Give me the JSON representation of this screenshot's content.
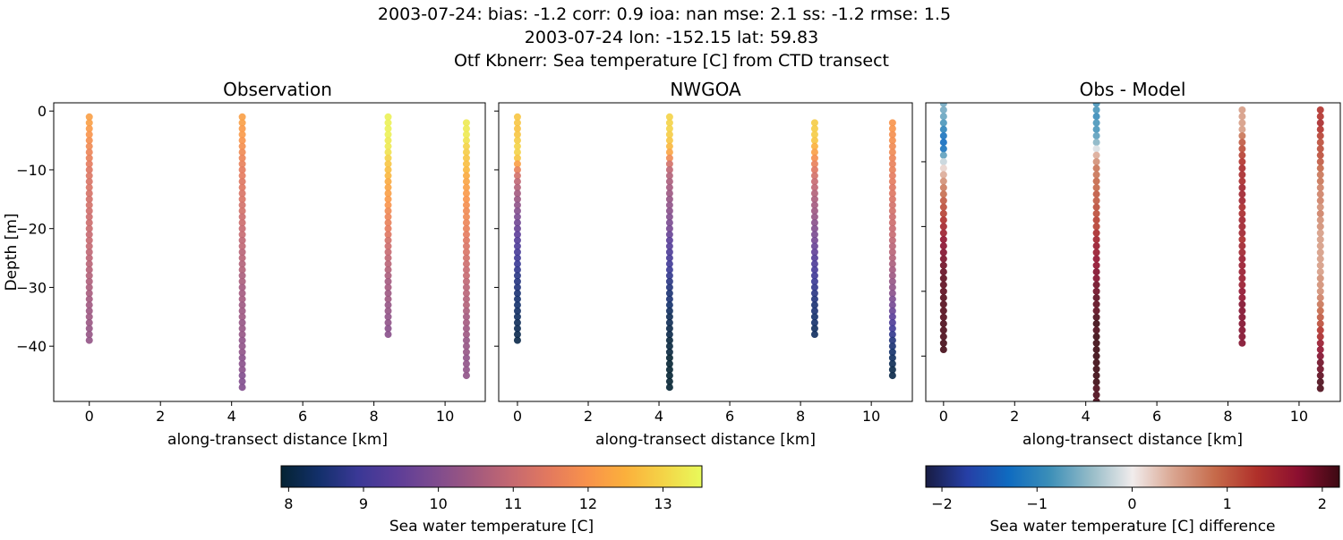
{
  "suptitle": [
    "2003-07-24: bias: -1.2  corr: 0.9  ioa: nan  mse: 2.1  ss: -1.2  rmse: 1.5",
    "2003-07-24 lon: -152.15 lat: 59.83",
    "Otf Kbnerr: Sea temperature [C] from CTD transect"
  ],
  "chart_data": [
    {
      "type": "scatter",
      "title": "Observation",
      "xlabel": "along-transect distance [km]",
      "ylabel": "Depth [m]",
      "xlim": [
        -1.0,
        11.13
      ],
      "ylim": [
        -49.4,
        1.4
      ],
      "xticks": [
        "0",
        "2",
        "4",
        "6",
        "8",
        "10"
      ],
      "yticks": [
        "0",
        "−10",
        "−20",
        "−30",
        "−40"
      ],
      "colormap": "thermal",
      "value_key": "obs"
    },
    {
      "type": "scatter",
      "title": "NWGOA",
      "xlabel": "along-transect distance [km]",
      "xlim": [
        -0.53,
        11.16
      ],
      "ylim": [
        -49.4,
        1.4
      ],
      "xticks": [
        "0",
        "2",
        "4",
        "6",
        "8",
        "10"
      ],
      "colormap": "thermal",
      "value_key": "model"
    },
    {
      "type": "scatter",
      "title": "Obs - Model",
      "xlabel": "along-transect distance [km]",
      "xlim": [
        -0.5,
        11.16
      ],
      "ylim": [
        -47.0,
        -0.9
      ],
      "xticks": [
        "0",
        "2",
        "4",
        "6",
        "8",
        "10"
      ],
      "colormap": "balance",
      "value_key": "diff"
    }
  ],
  "profiles": [
    {
      "x": 0.0,
      "obs_top": -1,
      "model_top": -1,
      "obs": [
        12.2,
        12.2,
        12.1,
        12.0,
        11.9,
        11.8,
        11.7,
        11.6,
        11.5,
        11.4,
        11.35,
        11.3,
        11.3,
        11.25,
        11.2,
        11.2,
        11.15,
        11.1,
        11.1,
        11.05,
        11.0,
        11.0,
        10.95,
        10.9,
        10.85,
        10.8,
        10.75,
        10.7,
        10.65,
        10.6,
        10.55,
        10.5,
        10.45,
        10.4,
        10.4,
        10.35,
        10.3,
        10.3,
        10.25
      ],
      "model": [
        12.8,
        12.8,
        12.75,
        12.8,
        12.9,
        13.0,
        13.0,
        12.8,
        12.2,
        11.6,
        11.2,
        10.9,
        10.7,
        10.5,
        10.35,
        10.2,
        10.05,
        9.9,
        9.75,
        9.6,
        9.45,
        9.3,
        9.2,
        9.1,
        9.0,
        8.9,
        8.8,
        8.7,
        8.65,
        8.6,
        8.5,
        8.45,
        8.4,
        8.35,
        8.3,
        8.25,
        8.2,
        8.15,
        8.1
      ]
    },
    {
      "x": 4.3,
      "obs_top": -1,
      "model_top": -1,
      "obs": [
        12.2,
        12.2,
        12.1,
        12.1,
        12.0,
        11.9,
        11.8,
        11.7,
        11.6,
        11.5,
        11.5,
        11.4,
        11.4,
        11.3,
        11.3,
        11.2,
        11.2,
        11.1,
        11.1,
        11.0,
        11.0,
        10.9,
        10.9,
        10.8,
        10.8,
        10.7,
        10.7,
        10.6,
        10.6,
        10.5,
        10.5,
        10.5,
        10.4,
        10.4,
        10.4,
        10.3,
        10.3,
        10.3,
        10.2,
        10.2,
        10.2,
        10.1,
        10.1,
        10.1,
        10.0,
        10.0,
        10.0
      ],
      "model": [
        13.0,
        13.0,
        13.0,
        12.9,
        12.8,
        12.6,
        12.3,
        11.8,
        11.2,
        10.9,
        10.7,
        10.6,
        10.5,
        10.4,
        10.3,
        10.2,
        10.1,
        10.0,
        9.9,
        9.8,
        9.6,
        9.4,
        9.3,
        9.2,
        9.1,
        9.0,
        8.9,
        8.8,
        8.7,
        8.6,
        8.5,
        8.5,
        8.4,
        8.3,
        8.2,
        8.2,
        8.1,
        8.1,
        8.0,
        8.0,
        8.0,
        7.9,
        7.9,
        7.9,
        7.9,
        7.9,
        7.9
      ]
    },
    {
      "x": 8.4,
      "obs_top": -1,
      "model_top": -2,
      "obs": [
        13.4,
        13.4,
        13.4,
        13.4,
        13.3,
        13.3,
        13.2,
        13.0,
        12.8,
        12.7,
        12.6,
        12.4,
        12.3,
        12.2,
        12.1,
        12.0,
        11.8,
        11.7,
        11.6,
        11.5,
        11.4,
        11.2,
        11.1,
        11.0,
        10.9,
        10.8,
        10.7,
        10.6,
        10.5,
        10.5,
        10.4,
        10.4,
        10.3,
        10.3,
        10.2,
        10.2,
        10.1,
        10.1
      ],
      "model": [
        12.9,
        12.9,
        12.9,
        12.8,
        12.5,
        12.2,
        11.9,
        11.6,
        11.4,
        11.2,
        11.0,
        10.9,
        10.7,
        10.6,
        10.5,
        10.4,
        10.3,
        10.1,
        10.0,
        9.9,
        9.8,
        9.6,
        9.5,
        9.3,
        9.2,
        9.1,
        9.0,
        8.9,
        8.8,
        8.7,
        8.6,
        8.5,
        8.5,
        8.4,
        8.4,
        8.3,
        8.3
      ]
    },
    {
      "x": 10.6,
      "obs_top": -2,
      "model_top": -2,
      "obs": [
        13.3,
        13.3,
        13.3,
        13.2,
        13.0,
        12.9,
        12.8,
        12.7,
        12.6,
        12.4,
        12.3,
        12.2,
        12.1,
        12.0,
        11.9,
        11.8,
        11.8,
        11.7,
        11.6,
        11.5,
        11.4,
        11.3,
        11.3,
        11.2,
        11.1,
        11.0,
        11.0,
        10.9,
        10.8,
        10.8,
        10.7,
        10.7,
        10.6,
        10.5,
        10.5,
        10.4,
        10.4,
        10.3,
        10.3,
        10.3,
        10.2,
        10.2,
        10.2,
        10.2
      ],
      "model": [
        12.0,
        12.0,
        11.9,
        11.9,
        11.8,
        11.8,
        11.7,
        11.6,
        11.6,
        11.5,
        11.5,
        11.4,
        11.4,
        11.3,
        11.2,
        11.2,
        11.1,
        11.1,
        11.0,
        11.0,
        10.9,
        10.8,
        10.8,
        10.7,
        10.6,
        10.5,
        10.4,
        10.3,
        10.2,
        10.1,
        9.9,
        9.8,
        9.6,
        9.4,
        9.2,
        9.0,
        8.8,
        8.6,
        8.5,
        8.4,
        8.3,
        8.2,
        8.1,
        8.1
      ]
    }
  ],
  "colorbars": [
    {
      "label": "Sea water temperature [C]",
      "range": [
        7.9,
        13.52
      ],
      "ticks": [
        "8",
        "9",
        "10",
        "11",
        "12",
        "13"
      ],
      "tick_values": [
        8,
        9,
        10,
        11,
        12,
        13
      ],
      "colormap": "thermal"
    },
    {
      "label": "Sea water temperature [C] difference",
      "range": [
        -2.17,
        2.18
      ],
      "ticks": [
        "−2",
        "−1",
        "0",
        "1",
        "2"
      ],
      "tick_values": [
        -2,
        -1,
        0,
        1,
        2
      ],
      "colormap": "balance"
    }
  ],
  "colormaps": {
    "thermal": [
      "#042333",
      "#13306b",
      "#3a3896",
      "#5c3d98",
      "#7d4b8f",
      "#a0587f",
      "#c46871",
      "#e3795e",
      "#f8924b",
      "#fbb03c",
      "#f4d447",
      "#e8fa5b"
    ],
    "balance": [
      "#181c43",
      "#263fa6",
      "#0f6bc0",
      "#3c8fb8",
      "#96bcc8",
      "#f1ecec",
      "#d9a48f",
      "#c66a4a",
      "#b0302a",
      "#8c0f30",
      "#3c0912"
    ]
  }
}
